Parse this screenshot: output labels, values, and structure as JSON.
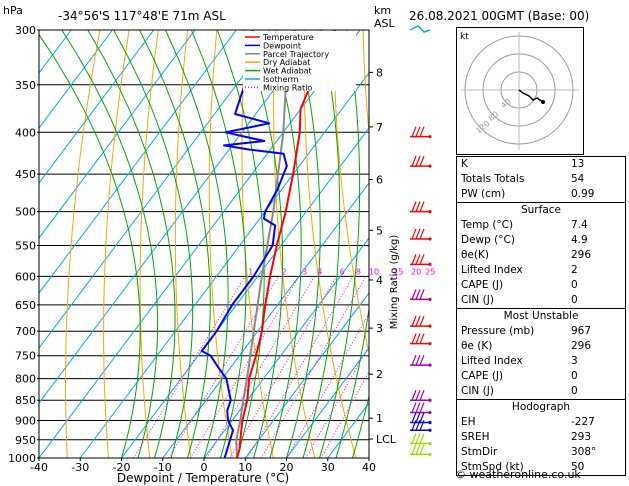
{
  "header": {
    "location": "-34°56'S  117°48'E  71m  ASL",
    "datetime": "26.08.2021  00GMT  (Base: 00)",
    "left_unit": "hPa",
    "right_unit_km": "km",
    "right_unit_asl": "ASL"
  },
  "chart_data": {
    "type": "skewt",
    "xlabel": "Dewpoint / Temperature (°C)",
    "right_axis_label": "Mixing Ratio (g/kg)",
    "pressure_levels": [
      300,
      350,
      400,
      450,
      500,
      550,
      600,
      650,
      700,
      750,
      800,
      850,
      900,
      950,
      1000
    ],
    "x_ticks": [
      -40,
      -30,
      -20,
      -10,
      0,
      10,
      20,
      30,
      40
    ],
    "xlim": [
      -40,
      40
    ],
    "ylim": [
      1000,
      300
    ],
    "km_ticks": [
      {
        "label": "8",
        "p": 338
      },
      {
        "label": "7",
        "p": 394
      },
      {
        "label": "6",
        "p": 457
      },
      {
        "label": "5",
        "p": 527
      },
      {
        "label": "4",
        "p": 606
      },
      {
        "label": "3",
        "p": 694
      },
      {
        "label": "2",
        "p": 790
      },
      {
        "label": "1",
        "p": 894
      },
      {
        "label": "LCL",
        "p": 948
      }
    ],
    "mixing_ratio_labels": [
      "1",
      "2",
      "3",
      "4",
      "6",
      "8",
      "10",
      "15",
      "20",
      "25"
    ],
    "legend": [
      "Temperature",
      "Dewpoint",
      "Parcel Trajectory",
      "Dry Adiabat",
      "Wet Adiabat",
      "Isotherm",
      "Mixing Ratio"
    ],
    "temperature": [
      [
        1000,
        8
      ],
      [
        975,
        7
      ],
      [
        950,
        5.5
      ],
      [
        925,
        4
      ],
      [
        900,
        2.5
      ],
      [
        850,
        0
      ],
      [
        800,
        -3.5
      ],
      [
        750,
        -6
      ],
      [
        700,
        -9
      ],
      [
        650,
        -13
      ],
      [
        600,
        -17
      ],
      [
        550,
        -21
      ],
      [
        500,
        -25
      ],
      [
        450,
        -30
      ],
      [
        400,
        -36
      ],
      [
        375,
        -40
      ],
      [
        350,
        -42
      ],
      [
        325,
        -44
      ],
      [
        300,
        -46
      ]
    ],
    "dewpoint": [
      [
        1000,
        5
      ],
      [
        975,
        4
      ],
      [
        950,
        3
      ],
      [
        925,
        2
      ],
      [
        900,
        -1
      ],
      [
        875,
        -3
      ],
      [
        850,
        -4
      ],
      [
        800,
        -9
      ],
      [
        775,
        -13
      ],
      [
        750,
        -17
      ],
      [
        740,
        -20
      ],
      [
        700,
        -20
      ],
      [
        650,
        -21
      ],
      [
        600,
        -21
      ],
      [
        550,
        -22
      ],
      [
        520,
        -25
      ],
      [
        510,
        -29
      ],
      [
        500,
        -30
      ],
      [
        470,
        -31
      ],
      [
        440,
        -33
      ],
      [
        425,
        -36
      ],
      [
        420,
        -45
      ],
      [
        415,
        -52
      ],
      [
        410,
        -43
      ],
      [
        400,
        -54
      ],
      [
        390,
        -45
      ],
      [
        380,
        -55
      ],
      [
        370,
        -56
      ],
      [
        350,
        -58
      ],
      [
        325,
        -62
      ],
      [
        300,
        -66
      ]
    ],
    "parcel": [
      [
        1000,
        8
      ],
      [
        950,
        4.5
      ],
      [
        900,
        2
      ],
      [
        850,
        -1
      ],
      [
        800,
        -4
      ],
      [
        700,
        -11
      ],
      [
        600,
        -19
      ],
      [
        500,
        -28
      ],
      [
        400,
        -40
      ],
      [
        350,
        -48
      ],
      [
        300,
        -56
      ]
    ],
    "colors": {
      "temperature": "#ff0000",
      "dewpoint": "#0000ff",
      "parcel": "#888888",
      "dry_adiabat": "#ffa500",
      "wet_adiabat": "#00aa00",
      "isotherm": "#00aaff",
      "mixing_ratio": "#ff00ff",
      "wind_red": "#ff0000",
      "wind_purple": "#aa00aa",
      "wind_blue": "#0000ff",
      "wind_lime": "#99dd00",
      "wind_cyan": "#00aaff"
    }
  },
  "hodograph": {
    "unit": "kt",
    "ring_labels": [
      "40",
      "80",
      "120"
    ]
  },
  "indices": {
    "k_label": "K",
    "k_value": "13",
    "tt_label": "Totals Totals",
    "tt_value": "54",
    "pw_label": "PW (cm)",
    "pw_value": "0.99",
    "surface_title": "Surface",
    "temp_label": "Temp (°C)",
    "temp_value": "7.4",
    "dewp_label": "Dewp (°C)",
    "dewp_value": "4.9",
    "theta_label": "θe(K)",
    "theta_value": "296",
    "li_label": "Lifted Index",
    "li_value": "2",
    "cape_label": "CAPE (J)",
    "cape_value": "0",
    "cin_label": "CIN (J)",
    "cin_value": "0",
    "mu_title": "Most Unstable",
    "mu_pressure_label": "Pressure (mb)",
    "mu_pressure_value": "967",
    "mu_theta_label": "θe (K)",
    "mu_theta_value": "296",
    "mu_li_label": "Lifted Index",
    "mu_li_value": "3",
    "mu_cape_label": "CAPE (J)",
    "mu_cape_value": "0",
    "mu_cin_label": "CIN (J)",
    "mu_cin_value": "0",
    "hodo_title": "Hodograph",
    "eh_label": "EH",
    "eh_value": "-227",
    "sreh_label": "SREH",
    "sreh_value": "293",
    "stmdir_label": "StmDir",
    "stmdir_value": "308°",
    "stmspd_label": "StmSpd (kt)",
    "stmspd_value": "50"
  },
  "credit": "© weatheronline.co.uk"
}
